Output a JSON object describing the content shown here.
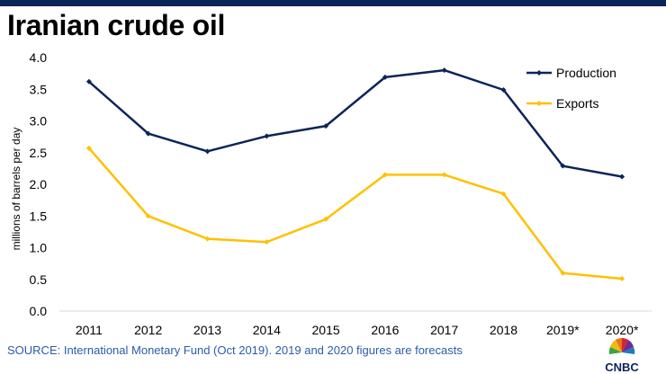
{
  "header": {
    "title": "Iranian crude oil"
  },
  "footer": {
    "source": "SOURCE: International Monetary Fund (Oct 2019). 2019 and 2020 figures are forecasts",
    "logo_text": "CNBC"
  },
  "colors": {
    "production": "#0c2559",
    "exports": "#ffc000",
    "bar": "#0c2559",
    "axis": "#d9d9d9"
  },
  "chart_data": {
    "type": "line",
    "title": "Iranian crude oil",
    "xlabel": "",
    "ylabel": "millions of barrels per day",
    "categories": [
      "2011",
      "2012",
      "2013",
      "2014",
      "2015",
      "2016",
      "2017",
      "2018",
      "2019*",
      "2020*"
    ],
    "ylim": [
      0,
      4.0
    ],
    "yticks": [
      "0.0",
      "0.5",
      "1.0",
      "1.5",
      "2.0",
      "2.5",
      "3.0",
      "3.5",
      "4.0"
    ],
    "legend_position": "top-right",
    "series": [
      {
        "name": "Production",
        "values": [
          3.62,
          2.8,
          2.52,
          2.76,
          2.92,
          3.69,
          3.8,
          3.49,
          2.29,
          2.12
        ]
      },
      {
        "name": "Exports",
        "values": [
          2.57,
          1.5,
          1.14,
          1.09,
          1.45,
          2.15,
          2.15,
          1.85,
          0.6,
          0.51
        ]
      }
    ]
  }
}
